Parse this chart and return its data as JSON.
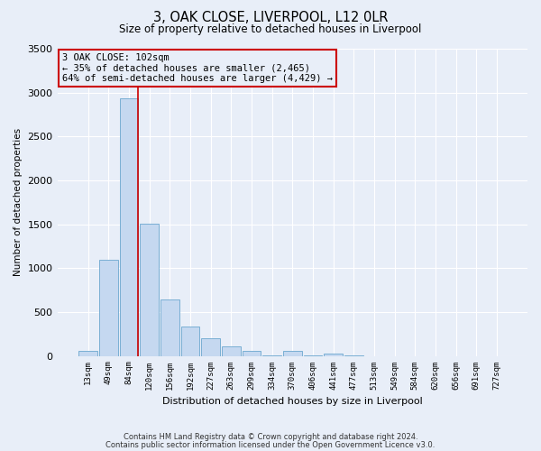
{
  "title": "3, OAK CLOSE, LIVERPOOL, L12 0LR",
  "subtitle": "Size of property relative to detached houses in Liverpool",
  "xlabel": "Distribution of detached houses by size in Liverpool",
  "ylabel": "Number of detached properties",
  "footnote1": "Contains HM Land Registry data © Crown copyright and database right 2024.",
  "footnote2": "Contains public sector information licensed under the Open Government Licence v3.0.",
  "bar_labels": [
    "13sqm",
    "49sqm",
    "84sqm",
    "120sqm",
    "156sqm",
    "192sqm",
    "227sqm",
    "263sqm",
    "299sqm",
    "334sqm",
    "370sqm",
    "406sqm",
    "441sqm",
    "477sqm",
    "513sqm",
    "549sqm",
    "584sqm",
    "620sqm",
    "656sqm",
    "691sqm",
    "727sqm"
  ],
  "bar_values": [
    55,
    1100,
    2930,
    1510,
    640,
    330,
    200,
    110,
    60,
    5,
    55,
    5,
    30,
    5,
    0,
    0,
    0,
    0,
    0,
    0,
    0
  ],
  "bar_color": "#c5d8f0",
  "bar_edgecolor": "#7aafd4",
  "ylim": [
    0,
    3500
  ],
  "yticks": [
    0,
    500,
    1000,
    1500,
    2000,
    2500,
    3000,
    3500
  ],
  "vline_color": "#cc0000",
  "annotation_title": "3 OAK CLOSE: 102sqm",
  "annotation_line1": "← 35% of detached houses are smaller (2,465)",
  "annotation_line2": "64% of semi-detached houses are larger (4,429) →",
  "annotation_box_edgecolor": "#cc0000",
  "bg_color": "#e8eef8"
}
